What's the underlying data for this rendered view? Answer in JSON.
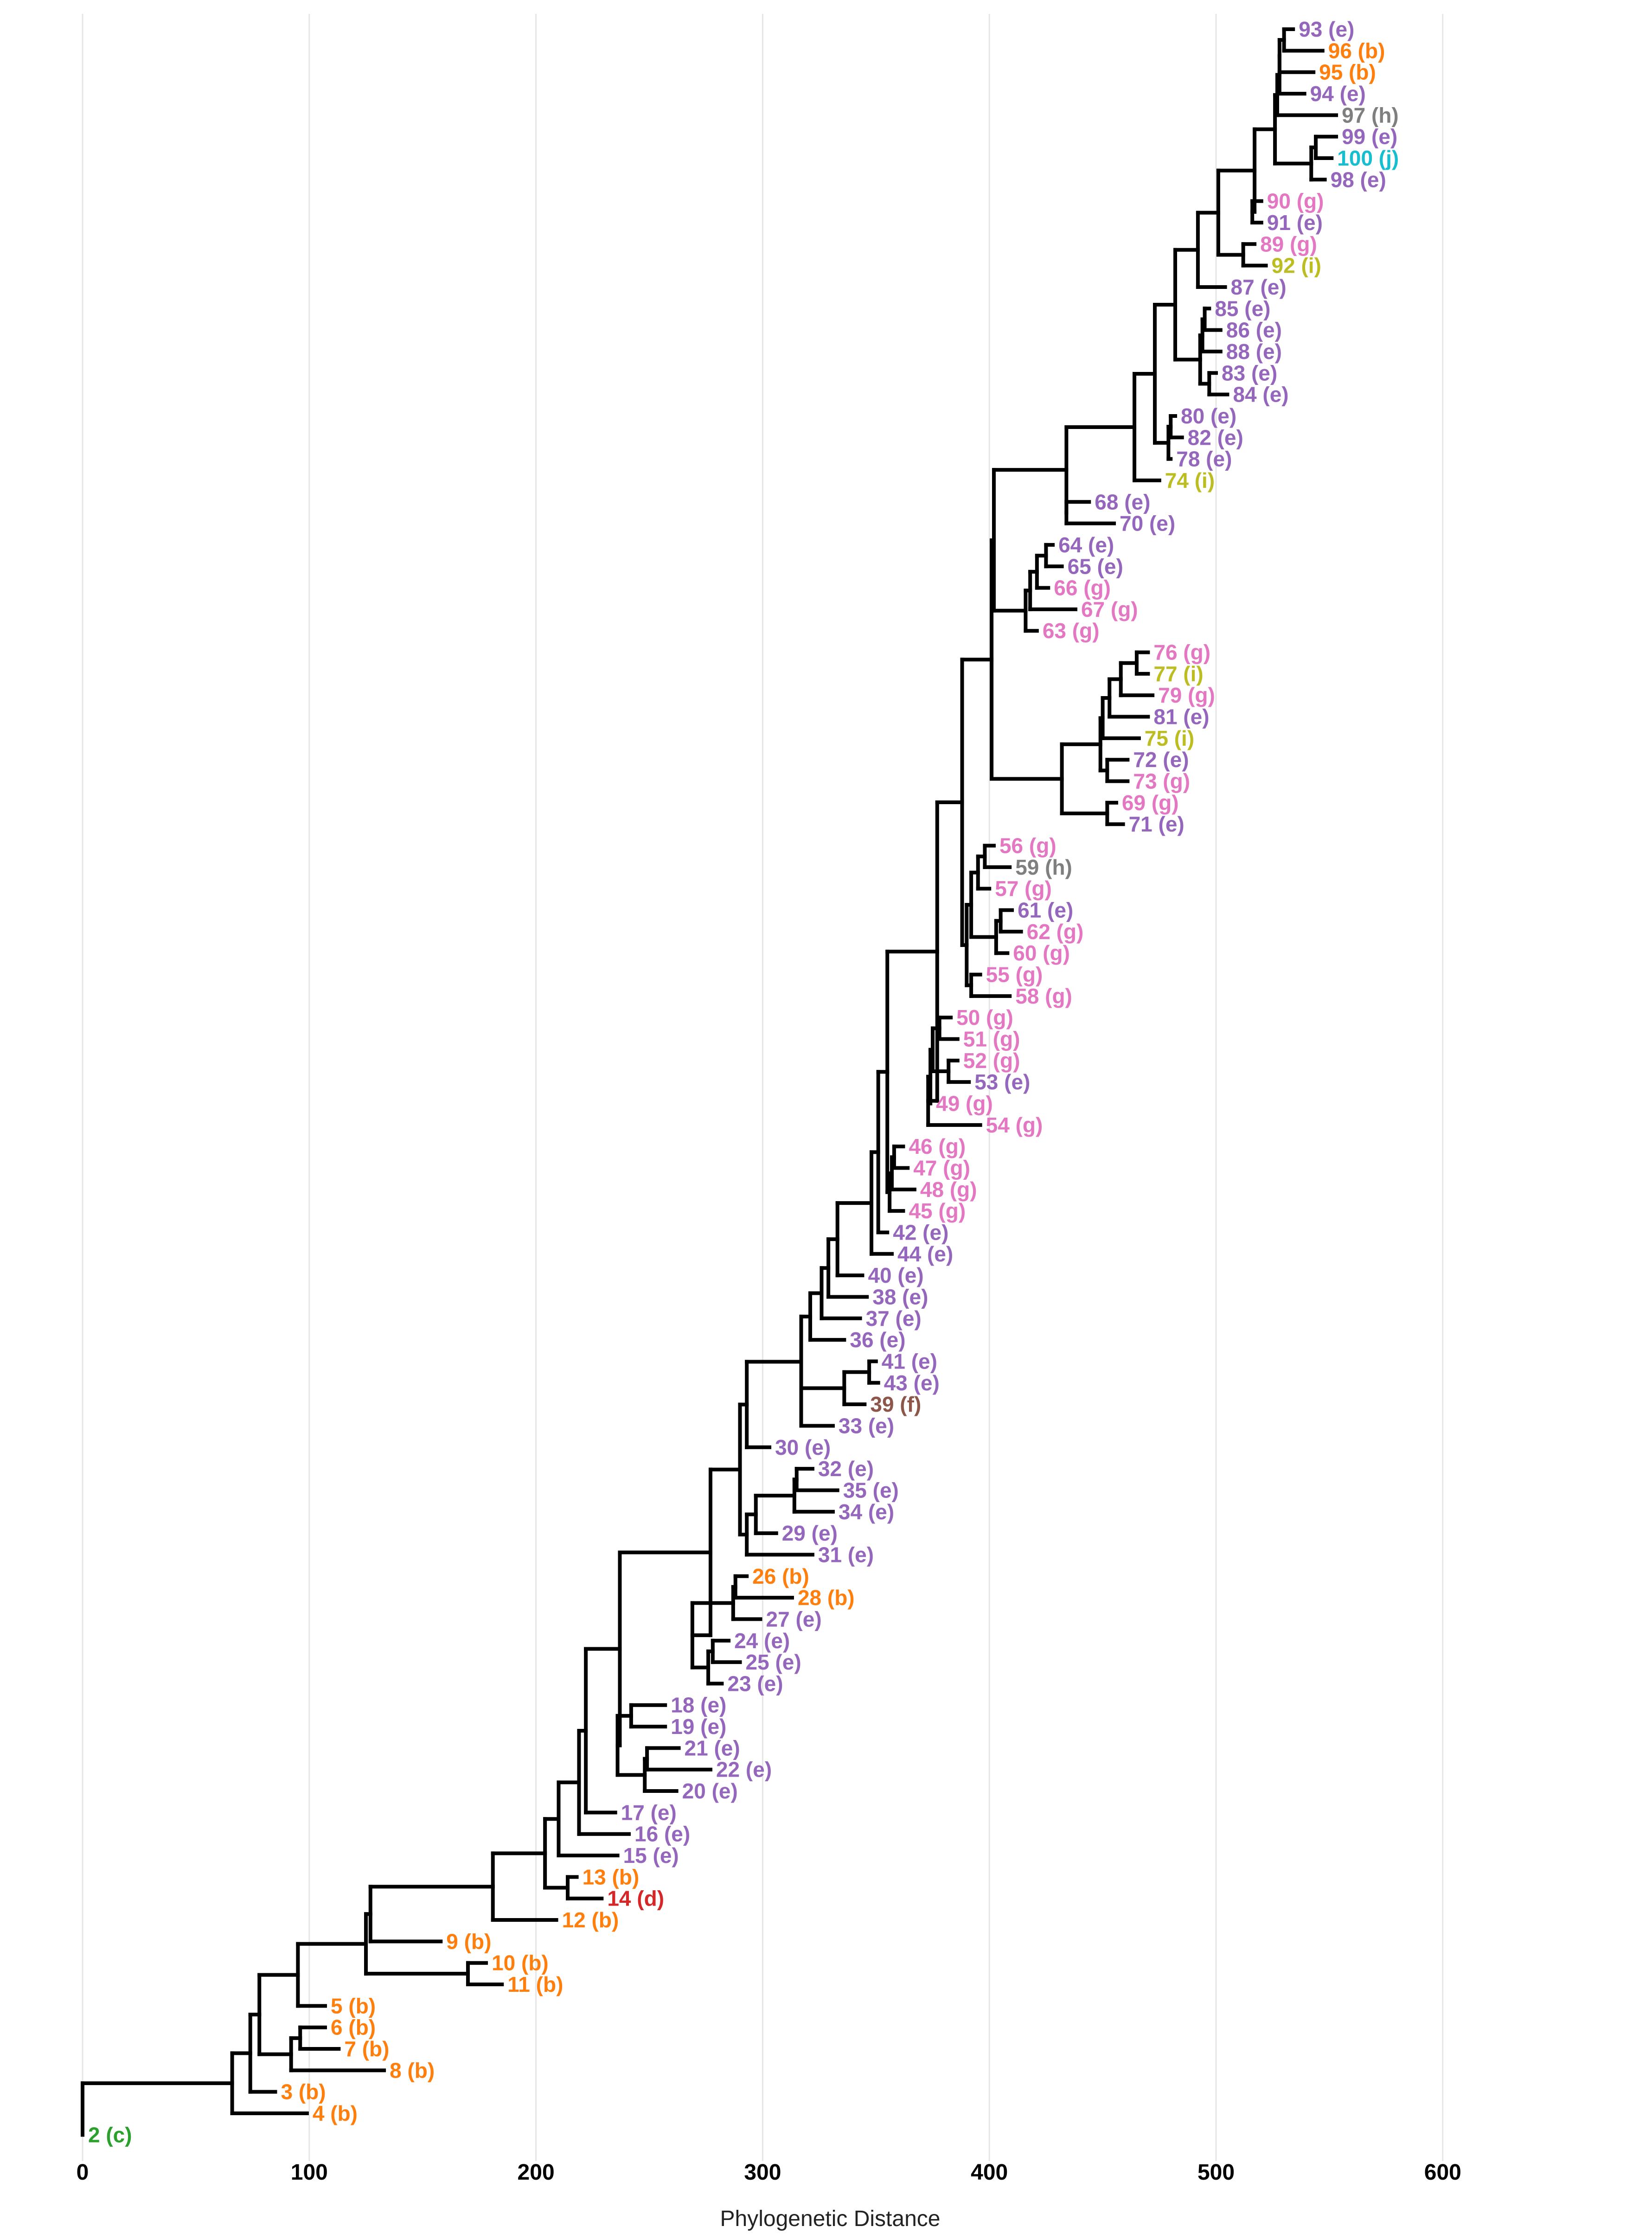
{
  "chart_data": {
    "type": "phylogenetic-tree",
    "xlabel": "Phylogenetic Distance",
    "xlim": [
      0,
      650
    ],
    "xticks": [
      0,
      100,
      200,
      300,
      400,
      500,
      600
    ],
    "grid": true,
    "legend": "none",
    "group_colors": {
      "b": "#ff7f0e",
      "c": "#2ca02c",
      "d": "#d62728",
      "e": "#9467bd",
      "f": "#8c564b",
      "g": "#e377c2",
      "h": "#7f7f7f",
      "i": "#bcbd22",
      "j": "#17becf"
    },
    "tips": [
      {
        "label": "93",
        "group": "e",
        "d": 534
      },
      {
        "label": "96",
        "group": "b",
        "d": 547
      },
      {
        "label": "95",
        "group": "b",
        "d": 543
      },
      {
        "label": "94",
        "group": "e",
        "d": 539
      },
      {
        "label": "97",
        "group": "h",
        "d": 553
      },
      {
        "label": "99",
        "group": "e",
        "d": 553
      },
      {
        "label": "100",
        "group": "j",
        "d": 551
      },
      {
        "label": "98",
        "group": "e",
        "d": 548
      },
      {
        "label": "90",
        "group": "g",
        "d": 520
      },
      {
        "label": "91",
        "group": "e",
        "d": 520
      },
      {
        "label": "89",
        "group": "g",
        "d": 517
      },
      {
        "label": "92",
        "group": "i",
        "d": 522
      },
      {
        "label": "87",
        "group": "e",
        "d": 504
      },
      {
        "label": "85",
        "group": "e",
        "d": 497
      },
      {
        "label": "86",
        "group": "e",
        "d": 502
      },
      {
        "label": "88",
        "group": "e",
        "d": 502
      },
      {
        "label": "83",
        "group": "e",
        "d": 500
      },
      {
        "label": "84",
        "group": "e",
        "d": 505
      },
      {
        "label": "80",
        "group": "e",
        "d": 482
      },
      {
        "label": "82",
        "group": "e",
        "d": 485
      },
      {
        "label": "78",
        "group": "e",
        "d": 480
      },
      {
        "label": "74",
        "group": "i",
        "d": 475
      },
      {
        "label": "68",
        "group": "e",
        "d": 444
      },
      {
        "label": "70",
        "group": "e",
        "d": 455
      },
      {
        "label": "64",
        "group": "e",
        "d": 428
      },
      {
        "label": "65",
        "group": "e",
        "d": 432
      },
      {
        "label": "66",
        "group": "g",
        "d": 426
      },
      {
        "label": "67",
        "group": "g",
        "d": 438
      },
      {
        "label": "63",
        "group": "g",
        "d": 421
      },
      {
        "label": "76",
        "group": "g",
        "d": 470
      },
      {
        "label": "77",
        "group": "i",
        "d": 470
      },
      {
        "label": "79",
        "group": "g",
        "d": 472
      },
      {
        "label": "81",
        "group": "e",
        "d": 470
      },
      {
        "label": "75",
        "group": "i",
        "d": 466
      },
      {
        "label": "72",
        "group": "e",
        "d": 461
      },
      {
        "label": "73",
        "group": "g",
        "d": 461
      },
      {
        "label": "69",
        "group": "g",
        "d": 456
      },
      {
        "label": "71",
        "group": "e",
        "d": 459
      },
      {
        "label": "56",
        "group": "g",
        "d": 402
      },
      {
        "label": "59",
        "group": "h",
        "d": 409
      },
      {
        "label": "57",
        "group": "g",
        "d": 400
      },
      {
        "label": "61",
        "group": "e",
        "d": 410
      },
      {
        "label": "62",
        "group": "g",
        "d": 414
      },
      {
        "label": "60",
        "group": "g",
        "d": 408
      },
      {
        "label": "55",
        "group": "g",
        "d": 396
      },
      {
        "label": "58",
        "group": "g",
        "d": 409
      },
      {
        "label": "50",
        "group": "g",
        "d": 383
      },
      {
        "label": "51",
        "group": "g",
        "d": 386
      },
      {
        "label": "52",
        "group": "g",
        "d": 386
      },
      {
        "label": "53",
        "group": "e",
        "d": 391
      },
      {
        "label": "49",
        "group": "g",
        "d": 374
      },
      {
        "label": "54",
        "group": "g",
        "d": 396
      },
      {
        "label": "46",
        "group": "g",
        "d": 362
      },
      {
        "label": "47",
        "group": "g",
        "d": 364
      },
      {
        "label": "48",
        "group": "g",
        "d": 367
      },
      {
        "label": "45",
        "group": "g",
        "d": 362
      },
      {
        "label": "42",
        "group": "e",
        "d": 355
      },
      {
        "label": "44",
        "group": "e",
        "d": 357
      },
      {
        "label": "40",
        "group": "e",
        "d": 344
      },
      {
        "label": "38",
        "group": "e",
        "d": 346
      },
      {
        "label": "37",
        "group": "e",
        "d": 343
      },
      {
        "label": "36",
        "group": "e",
        "d": 336
      },
      {
        "label": "41",
        "group": "e",
        "d": 350
      },
      {
        "label": "43",
        "group": "e",
        "d": 351
      },
      {
        "label": "39",
        "group": "f",
        "d": 345
      },
      {
        "label": "33",
        "group": "e",
        "d": 331
      },
      {
        "label": "30",
        "group": "e",
        "d": 303
      },
      {
        "label": "32",
        "group": "e",
        "d": 322
      },
      {
        "label": "35",
        "group": "e",
        "d": 333
      },
      {
        "label": "34",
        "group": "e",
        "d": 331
      },
      {
        "label": "29",
        "group": "e",
        "d": 306
      },
      {
        "label": "31",
        "group": "e",
        "d": 322
      },
      {
        "label": "26",
        "group": "b",
        "d": 293
      },
      {
        "label": "28",
        "group": "b",
        "d": 313
      },
      {
        "label": "27",
        "group": "e",
        "d": 299
      },
      {
        "label": "24",
        "group": "e",
        "d": 285
      },
      {
        "label": "25",
        "group": "e",
        "d": 290
      },
      {
        "label": "23",
        "group": "e",
        "d": 282
      },
      {
        "label": "18",
        "group": "e",
        "d": 257
      },
      {
        "label": "19",
        "group": "e",
        "d": 257
      },
      {
        "label": "21",
        "group": "e",
        "d": 263
      },
      {
        "label": "22",
        "group": "e",
        "d": 277
      },
      {
        "label": "20",
        "group": "e",
        "d": 262
      },
      {
        "label": "17",
        "group": "e",
        "d": 235
      },
      {
        "label": "16",
        "group": "e",
        "d": 241
      },
      {
        "label": "15",
        "group": "e",
        "d": 236
      },
      {
        "label": "13",
        "group": "b",
        "d": 218
      },
      {
        "label": "14",
        "group": "d",
        "d": 229
      },
      {
        "label": "12",
        "group": "b",
        "d": 209
      },
      {
        "label": "9",
        "group": "b",
        "d": 158
      },
      {
        "label": "10",
        "group": "b",
        "d": 178
      },
      {
        "label": "11",
        "group": "b",
        "d": 185
      },
      {
        "label": "5",
        "group": "b",
        "d": 107
      },
      {
        "label": "6",
        "group": "b",
        "d": 107
      },
      {
        "label": "7",
        "group": "b",
        "d": 113
      },
      {
        "label": "8",
        "group": "b",
        "d": 133
      },
      {
        "label": "3",
        "group": "b",
        "d": 85
      },
      {
        "label": "4",
        "group": "b",
        "d": 99
      },
      {
        "label": "2",
        "group": "c",
        "d": 0
      }
    ],
    "internal_nodes": [
      {
        "id": "n93_96",
        "d": 530,
        "c": [
          "93",
          "96"
        ]
      },
      {
        "id": "n93_95",
        "d": 528,
        "c": [
          "n93_96",
          "95"
        ]
      },
      {
        "id": "n93_94",
        "d": 528,
        "c": [
          "n93_95",
          "94"
        ]
      },
      {
        "id": "n93_97",
        "d": 527,
        "c": [
          "n93_94",
          "97"
        ]
      },
      {
        "id": "n99_100",
        "d": 544,
        "c": [
          "99",
          "100"
        ]
      },
      {
        "id": "n99_98",
        "d": 542,
        "c": [
          "n99_100",
          "98"
        ]
      },
      {
        "id": "n93_98",
        "d": 526,
        "c": [
          "n93_97",
          "n99_98"
        ]
      },
      {
        "id": "n90_91",
        "d": 516,
        "c": [
          "90",
          "91"
        ]
      },
      {
        "id": "n93_91",
        "d": 517,
        "c": [
          "n93_98",
          "n90_91"
        ]
      },
      {
        "id": "n89_92",
        "d": 512,
        "c": [
          "89",
          "92"
        ]
      },
      {
        "id": "n93_92",
        "d": 501,
        "c": [
          "n93_91",
          "n89_92"
        ]
      },
      {
        "id": "n93_87",
        "d": 492,
        "c": [
          "n93_92",
          "87"
        ]
      },
      {
        "id": "n85_86",
        "d": 495,
        "c": [
          "85",
          "86"
        ]
      },
      {
        "id": "n85_88",
        "d": 494,
        "c": [
          "n85_86",
          "88"
        ]
      },
      {
        "id": "n83_84",
        "d": 497,
        "c": [
          "83",
          "84"
        ]
      },
      {
        "id": "n85_84",
        "d": 493,
        "c": [
          "n85_88",
          "n83_84"
        ]
      },
      {
        "id": "n93_84",
        "d": 482,
        "c": [
          "n93_87",
          "n85_84"
        ]
      },
      {
        "id": "n80_82",
        "d": 480,
        "c": [
          "80",
          "82"
        ]
      },
      {
        "id": "n80_78",
        "d": 479,
        "c": [
          "n80_82",
          "78"
        ]
      },
      {
        "id": "n93_78",
        "d": 473,
        "c": [
          "n93_84",
          "n80_78"
        ]
      },
      {
        "id": "n93_74",
        "d": 464,
        "c": [
          "n93_78",
          "74"
        ]
      },
      {
        "id": "n68_70",
        "d": 434,
        "c": [
          "68",
          "70"
        ]
      },
      {
        "id": "n93_70",
        "d": 434,
        "c": [
          "n93_74",
          "n68_70"
        ]
      },
      {
        "id": "n64_65",
        "d": 425,
        "c": [
          "64",
          "65"
        ]
      },
      {
        "id": "n64_66",
        "d": 421,
        "c": [
          "n64_65",
          "66"
        ]
      },
      {
        "id": "n64_67",
        "d": 418,
        "c": [
          "n64_66",
          "67"
        ]
      },
      {
        "id": "n64_63",
        "d": 416,
        "c": [
          "n64_67",
          "63"
        ]
      },
      {
        "id": "n93_63",
        "d": 402,
        "c": [
          "n93_70",
          "n64_63"
        ]
      },
      {
        "id": "n76_77",
        "d": 465,
        "c": [
          "76",
          "77"
        ]
      },
      {
        "id": "n76_79",
        "d": 458,
        "c": [
          "n76_77",
          "79"
        ]
      },
      {
        "id": "n76_81",
        "d": 453,
        "c": [
          "n76_79",
          "81"
        ]
      },
      {
        "id": "n76_75",
        "d": 450,
        "c": [
          "n76_81",
          "75"
        ]
      },
      {
        "id": "n72_73",
        "d": 452,
        "c": [
          "72",
          "73"
        ]
      },
      {
        "id": "n76_73",
        "d": 449,
        "c": [
          "n76_75",
          "n72_73"
        ]
      },
      {
        "id": "n69_71",
        "d": 452,
        "c": [
          "69",
          "71"
        ]
      },
      {
        "id": "n76_71",
        "d": 432,
        "c": [
          "n76_73",
          "n69_71"
        ]
      },
      {
        "id": "n93_71",
        "d": 401,
        "c": [
          "n93_63",
          "n76_71"
        ]
      },
      {
        "id": "n56_59",
        "d": 398,
        "c": [
          "56",
          "59"
        ]
      },
      {
        "id": "n56_57",
        "d": 395,
        "c": [
          "n56_59",
          "57"
        ]
      },
      {
        "id": "n61_62",
        "d": 405,
        "c": [
          "61",
          "62"
        ]
      },
      {
        "id": "n61_60",
        "d": 403,
        "c": [
          "n61_62",
          "60"
        ]
      },
      {
        "id": "n56_60",
        "d": 392,
        "c": [
          "n56_57",
          "n61_60"
        ]
      },
      {
        "id": "n55_58",
        "d": 392,
        "c": [
          "55",
          "58"
        ]
      },
      {
        "id": "n56_58",
        "d": 390,
        "c": [
          "n56_60",
          "n55_58"
        ]
      },
      {
        "id": "n93_58",
        "d": 388,
        "c": [
          "n93_71",
          "n56_58"
        ]
      },
      {
        "id": "n50_51",
        "d": 378,
        "c": [
          "50",
          "51"
        ]
      },
      {
        "id": "n52_53",
        "d": 382,
        "c": [
          "52",
          "53"
        ]
      },
      {
        "id": "n50_53",
        "d": 375,
        "c": [
          "n50_51",
          "n52_53"
        ]
      },
      {
        "id": "n50_49",
        "d": 374,
        "c": [
          "n50_53",
          "49"
        ]
      },
      {
        "id": "n50_54",
        "d": 373,
        "c": [
          "n50_49",
          "54"
        ]
      },
      {
        "id": "n93_54",
        "d": 377,
        "c": [
          "n93_58",
          "n50_54"
        ]
      },
      {
        "id": "n46_47",
        "d": 358,
        "c": [
          "46",
          "47"
        ]
      },
      {
        "id": "n46_48",
        "d": 357,
        "c": [
          "n46_47",
          "48"
        ]
      },
      {
        "id": "n46_45",
        "d": 356,
        "c": [
          "n46_48",
          "45"
        ]
      },
      {
        "id": "n93_45",
        "d": 355,
        "c": [
          "n93_54",
          "n46_45"
        ]
      },
      {
        "id": "n93_42",
        "d": 351,
        "c": [
          "n93_45",
          "42"
        ]
      },
      {
        "id": "n93_44",
        "d": 348,
        "c": [
          "n93_42",
          "44"
        ]
      },
      {
        "id": "n93_40",
        "d": 333,
        "c": [
          "n93_44",
          "40"
        ]
      },
      {
        "id": "n93_38",
        "d": 329,
        "c": [
          "n93_40",
          "38"
        ]
      },
      {
        "id": "n93_37",
        "d": 326,
        "c": [
          "n93_38",
          "37"
        ]
      },
      {
        "id": "n93_36",
        "d": 321,
        "c": [
          "n93_37",
          "36"
        ]
      },
      {
        "id": "n41_43",
        "d": 347,
        "c": [
          "41",
          "43"
        ]
      },
      {
        "id": "n41_39",
        "d": 336,
        "c": [
          "n41_43",
          "39"
        ]
      },
      {
        "id": "n41_33",
        "d": 317,
        "c": [
          "n41_39",
          "33"
        ]
      },
      {
        "id": "n93_33",
        "d": 317,
        "c": [
          "n93_36",
          "n41_33"
        ]
      },
      {
        "id": "n93_30",
        "d": 293,
        "c": [
          "n93_33",
          "30"
        ]
      },
      {
        "id": "n32_35",
        "d": 315,
        "c": [
          "32",
          "35"
        ]
      },
      {
        "id": "n32_34",
        "d": 314,
        "c": [
          "n32_35",
          "34"
        ]
      },
      {
        "id": "n32_29",
        "d": 297,
        "c": [
          "n32_34",
          "29"
        ]
      },
      {
        "id": "n32_31",
        "d": 293,
        "c": [
          "n32_29",
          "31"
        ]
      },
      {
        "id": "n93_31",
        "d": 290,
        "c": [
          "n93_30",
          "n32_31"
        ]
      },
      {
        "id": "n26_28",
        "d": 288,
        "c": [
          "26",
          "28"
        ]
      },
      {
        "id": "n26_27",
        "d": 287,
        "c": [
          "n26_28",
          "27"
        ]
      },
      {
        "id": "n24_25",
        "d": 278,
        "c": [
          "24",
          "25"
        ]
      },
      {
        "id": "n24_23",
        "d": 276,
        "c": [
          "n24_25",
          "23"
        ]
      },
      {
        "id": "n26_23",
        "d": 269,
        "c": [
          "n26_27",
          "n24_23"
        ]
      },
      {
        "id": "n93_23",
        "d": 277,
        "c": [
          "n93_31",
          "n26_23"
        ]
      },
      {
        "id": "n18_19",
        "d": 242,
        "c": [
          "18",
          "19"
        ]
      },
      {
        "id": "n21_22",
        "d": 249,
        "c": [
          "21",
          "22"
        ]
      },
      {
        "id": "n21_20",
        "d": 248,
        "c": [
          "n21_22",
          "20"
        ]
      },
      {
        "id": "n18_20",
        "d": 236,
        "c": [
          "n18_19",
          "n21_20"
        ]
      },
      {
        "id": "n93_20",
        "d": 237,
        "c": [
          "n93_23",
          "n18_20"
        ]
      },
      {
        "id": "n93_17",
        "d": 222,
        "c": [
          "n93_20",
          "17"
        ]
      },
      {
        "id": "n93_16",
        "d": 219,
        "c": [
          "n93_17",
          "16"
        ]
      },
      {
        "id": "n93_15",
        "d": 210,
        "c": [
          "n93_16",
          "15"
        ]
      },
      {
        "id": "n13_14",
        "d": 214,
        "c": [
          "13",
          "14"
        ]
      },
      {
        "id": "n93_14",
        "d": 204,
        "c": [
          "n93_15",
          "n13_14"
        ]
      },
      {
        "id": "n93_12",
        "d": 181,
        "c": [
          "n93_14",
          "12"
        ]
      },
      {
        "id": "n93_9",
        "d": 127,
        "c": [
          "n93_12",
          "9"
        ]
      },
      {
        "id": "n10_11",
        "d": 170,
        "c": [
          "10",
          "11"
        ]
      },
      {
        "id": "n93_11",
        "d": 125,
        "c": [
          "n93_9",
          "n10_11"
        ]
      },
      {
        "id": "n93_5",
        "d": 95,
        "c": [
          "n93_11",
          "5"
        ]
      },
      {
        "id": "n6_7",
        "d": 96,
        "c": [
          "6",
          "7"
        ]
      },
      {
        "id": "n6_8",
        "d": 92,
        "c": [
          "n6_7",
          "8"
        ]
      },
      {
        "id": "n93_8",
        "d": 78,
        "c": [
          "n93_5",
          "n6_8"
        ]
      },
      {
        "id": "n93_3",
        "d": 74,
        "c": [
          "n93_8",
          "3"
        ]
      },
      {
        "id": "n93_4",
        "d": 66,
        "c": [
          "n93_3",
          "4"
        ]
      },
      {
        "id": "root",
        "d": 0,
        "c": [
          "n93_4",
          "2"
        ]
      }
    ]
  }
}
